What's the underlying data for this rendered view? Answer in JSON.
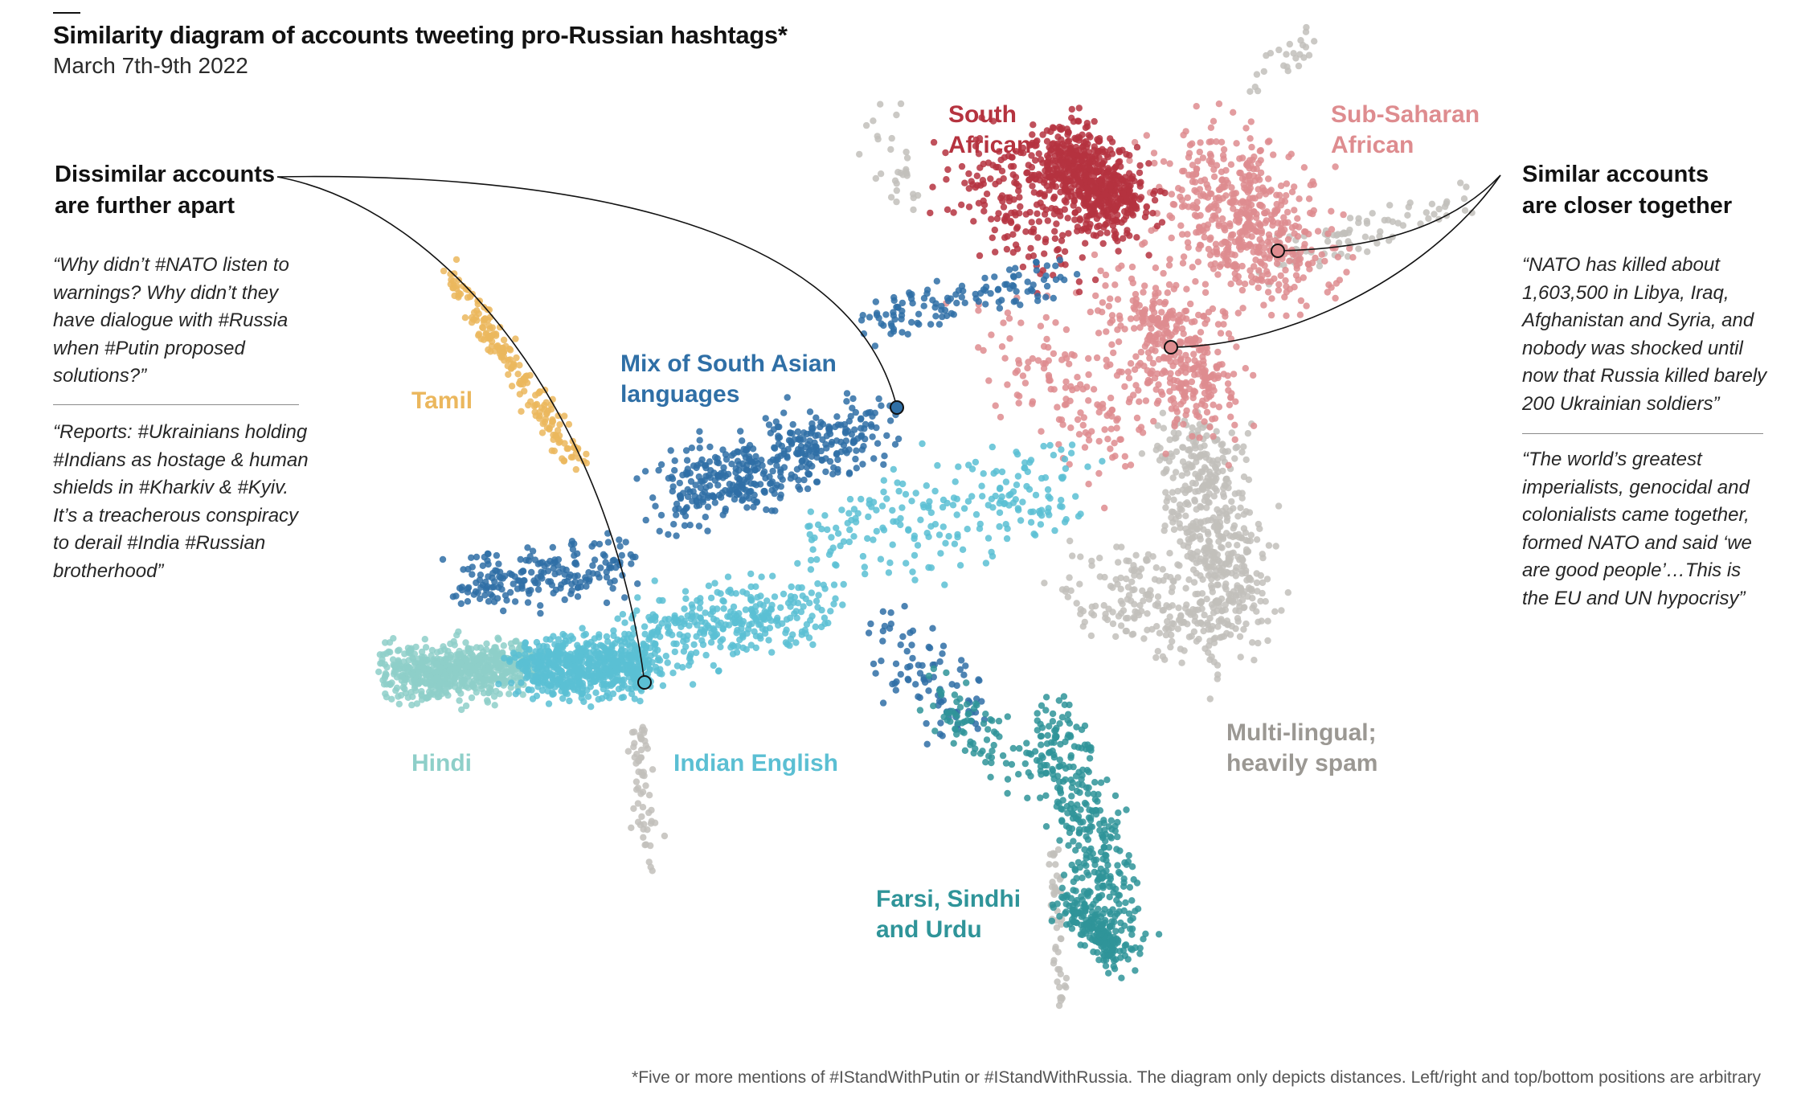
{
  "title": "Similarity diagram of accounts tweeting pro-Russian hashtags*",
  "subtitle": "March 7th-9th 2022",
  "left_annotation": {
    "heading": [
      "Dissimilar accounts",
      "are further apart"
    ],
    "quote1": "“Why didn’t #NATO listen to warnings? Why didn’t they have dialogue with #Russia when #Putin proposed solutions?”",
    "quote2": "“Reports: #Ukrainians holding #Indians as hostage & human shields in #Kharkiv & #Kyiv. It’s a treacherous conspiracy to derail #India #Russian brotherhood”"
  },
  "right_annotation": {
    "heading": [
      "Similar accounts",
      "are closer together"
    ],
    "quote1": "“NATO has killed about 1,603,500 in Libya, Iraq, Afghanistan and Syria, and nobody was shocked until now that Russia killed barely 200 Ukrainian soldiers”",
    "quote2": "“The world’s greatest imperialists, genocidal and colonialists came together, formed NATO and said ‘we are good people’…This is the EU and UN hypocrisy”"
  },
  "footnote": "*Five or more mentions of #IStandWithPutin or #IStandWithRussia. The diagram only depicts distances. Left/right and top/bottom positions are arbitrary",
  "chart_data": {
    "type": "scatter",
    "axes": "none (positions arbitrary)",
    "series": [
      {
        "name": "South African",
        "color": "#b5333f",
        "label_lines": [
          "South",
          "African"
        ]
      },
      {
        "name": "Sub-Saharan African",
        "color": "#de8c8f",
        "label_lines": [
          "Sub-Saharan",
          "African"
        ]
      },
      {
        "name": "Tamil",
        "color": "#ebb75d",
        "label_lines": [
          "Tamil"
        ]
      },
      {
        "name": "Mix of South Asian languages",
        "color": "#2f6fa6",
        "label_lines": [
          "Mix of South Asian",
          "languages"
        ]
      },
      {
        "name": "Hindi",
        "color": "#8ecfc9",
        "label_lines": [
          "Hindi"
        ]
      },
      {
        "name": "Indian English",
        "color": "#5bbfd3",
        "label_lines": [
          "Indian English"
        ]
      },
      {
        "name": "Farsi, Sindhi and Urdu",
        "color": "#2f9499",
        "label_lines": [
          "Farsi, Sindhi",
          "and Urdu"
        ]
      },
      {
        "name": "Multi-lingual; heavily spam",
        "color": "#c2bfbb",
        "label_lines": [
          "Multi-lingual;",
          "heavily spam"
        ]
      }
    ]
  }
}
